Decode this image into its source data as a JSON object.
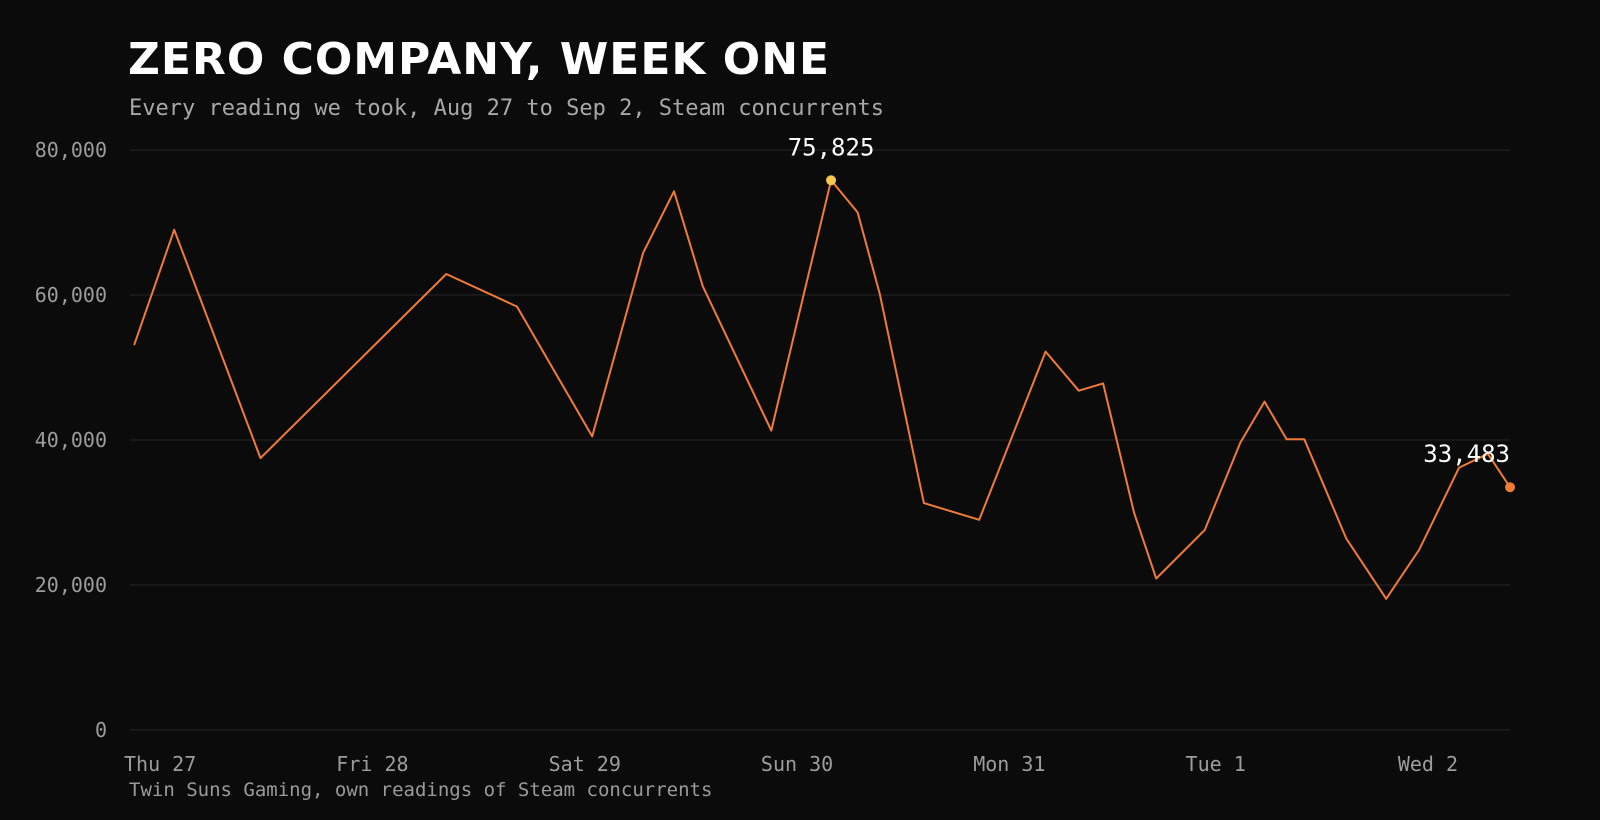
{
  "header": {
    "title": "ZERO COMPANY, WEEK ONE",
    "subtitle": "Every reading we took, Aug 27 to Sep 2, Steam concurrents"
  },
  "footer": {
    "source": "Twin Suns Gaming, own readings of Steam concurrents"
  },
  "colors": {
    "background": "#0b0b0c",
    "line": "#f07b35",
    "peak_marker": "#f5c74e",
    "last_marker": "#f07b35"
  },
  "chart_data": {
    "type": "line",
    "title": "ZERO COMPANY, WEEK ONE",
    "subtitle": "Every reading we took, Aug 27 to Sep 2, Steam concurrents",
    "xlabel": "",
    "ylabel": "",
    "ylim": [
      0,
      80000
    ],
    "y_ticks": [
      0,
      20000,
      40000,
      60000,
      80000
    ],
    "y_tick_labels": [
      "0",
      "20,000",
      "40,000",
      "60,000",
      "80,000"
    ],
    "x_range": [
      "2025-08-27 00:00",
      "2025-09-02 12:00"
    ],
    "x_ticks": [
      "2025-08-27 00:00",
      "2025-08-28 00:00",
      "2025-08-29 00:00",
      "2025-08-30 00:00",
      "2025-08-31 00:00",
      "2025-09-01 00:00",
      "2025-09-02 00:00"
    ],
    "x_tick_labels": [
      "Thu 27",
      "Fri 28",
      "Sat 29",
      "Sun 30",
      "Mon 31",
      "Tue 1",
      "Wed 2"
    ],
    "grid": true,
    "legend": "none",
    "series": [
      {
        "name": "",
        "points": [
          {
            "x": "2025-08-27 00:30",
            "y": 53200
          },
          {
            "x": "2025-08-27 05:00",
            "y": 69000
          },
          {
            "x": "2025-08-27 14:45",
            "y": 37500
          },
          {
            "x": "2025-08-28 11:45",
            "y": 62900
          },
          {
            "x": "2025-08-28 19:45",
            "y": 58400
          },
          {
            "x": "2025-08-29 04:15",
            "y": 40500
          },
          {
            "x": "2025-08-29 10:00",
            "y": 65800
          },
          {
            "x": "2025-08-29 13:30",
            "y": 74300
          },
          {
            "x": "2025-08-29 16:45",
            "y": 61200
          },
          {
            "x": "2025-08-30 00:30",
            "y": 41300
          },
          {
            "x": "2025-08-30 04:30",
            "y": 61800
          },
          {
            "x": "2025-08-30 07:15",
            "y": 75825
          },
          {
            "x": "2025-08-30 10:15",
            "y": 71400
          },
          {
            "x": "2025-08-30 12:45",
            "y": 60200
          },
          {
            "x": "2025-08-30 17:45",
            "y": 31300
          },
          {
            "x": "2025-08-30 24:00",
            "y": 29000
          },
          {
            "x": "2025-08-31 07:30",
            "y": 52200
          },
          {
            "x": "2025-08-31 11:15",
            "y": 46800
          },
          {
            "x": "2025-08-31 14:00",
            "y": 47800
          },
          {
            "x": "2025-08-31 17:30",
            "y": 30000
          },
          {
            "x": "2025-08-31 20:00",
            "y": 20900
          },
          {
            "x": "2025-09-01 01:30",
            "y": 27600
          },
          {
            "x": "2025-09-01 05:30",
            "y": 39600
          },
          {
            "x": "2025-09-01 08:15",
            "y": 45300
          },
          {
            "x": "2025-09-01 10:45",
            "y": 40100
          },
          {
            "x": "2025-09-01 12:45",
            "y": 40100
          },
          {
            "x": "2025-09-01 17:30",
            "y": 26400
          },
          {
            "x": "2025-09-01 22:00",
            "y": 18100
          },
          {
            "x": "2025-09-02 01:45",
            "y": 24900
          },
          {
            "x": "2025-09-02 06:15",
            "y": 36200
          },
          {
            "x": "2025-09-02 09:30",
            "y": 38100
          },
          {
            "x": "2025-09-02 12:00",
            "y": 33483
          }
        ]
      }
    ],
    "annotations": [
      {
        "text": "75,825",
        "x": "2025-08-30 07:15",
        "y": 75825,
        "role": "peak"
      },
      {
        "text": "33,483",
        "x": "2025-09-02 12:00",
        "y": 33483,
        "role": "latest"
      }
    ]
  }
}
